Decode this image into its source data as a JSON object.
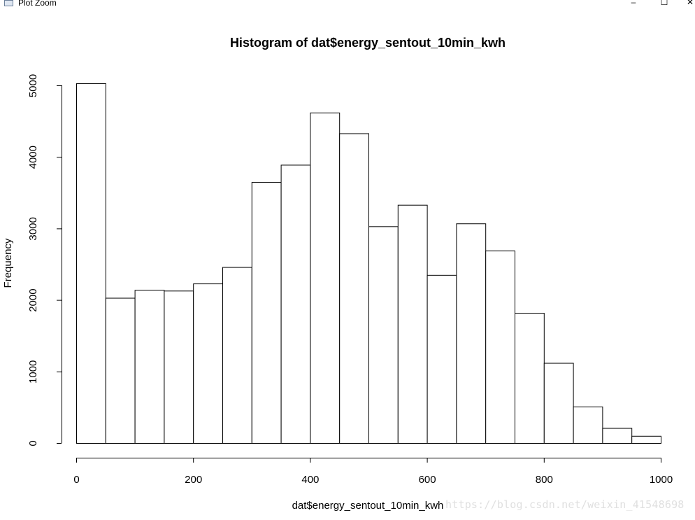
{
  "window": {
    "title": "Plot Zoom",
    "minimize_glyph": "–",
    "maximize_glyph": "☐",
    "close_glyph": "✕"
  },
  "watermark": "https://blog.csdn.net/weixin_41548698",
  "chart_data": {
    "type": "bar",
    "title": "Histogram of dat$energy_sentout_10min_kwh",
    "xlabel": "dat$energy_sentout_10min_kwh",
    "ylabel": "Frequency",
    "bin_edges": [
      0,
      50,
      100,
      150,
      200,
      250,
      300,
      350,
      400,
      450,
      500,
      550,
      600,
      650,
      700,
      750,
      800,
      850,
      900,
      950,
      1000
    ],
    "values": [
      5030,
      2030,
      2140,
      2130,
      2230,
      2460,
      3650,
      3890,
      4620,
      4330,
      3030,
      3330,
      2350,
      3070,
      2690,
      1820,
      1120,
      510,
      210,
      100
    ],
    "xlim": [
      0,
      1000
    ],
    "ylim": [
      0,
      5000
    ],
    "x_ticks": [
      0,
      200,
      400,
      600,
      800,
      1000
    ],
    "y_ticks": [
      0,
      1000,
      2000,
      3000,
      4000,
      5000
    ],
    "bar_fill": "#ffffff",
    "bar_stroke": "#000000",
    "grid": false,
    "legend": "none"
  }
}
